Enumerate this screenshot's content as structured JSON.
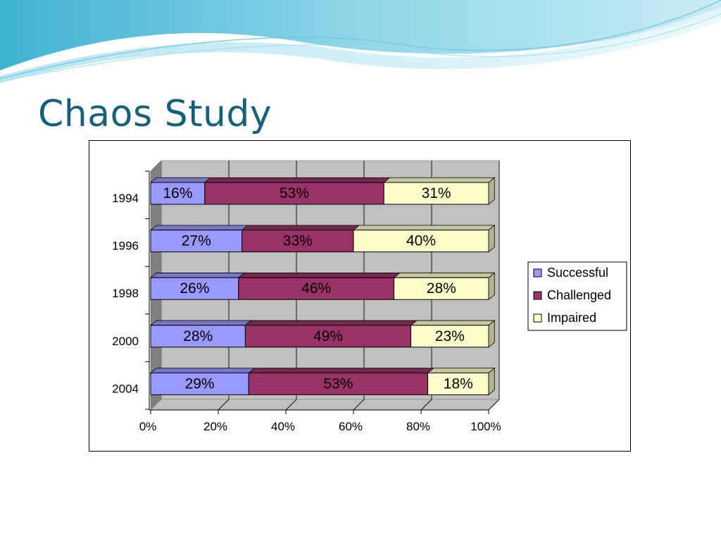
{
  "slide": {
    "title": "Chaos Study"
  },
  "chart_data": {
    "type": "bar",
    "orientation": "horizontal",
    "stacking": "percent",
    "style": "3d",
    "categories": [
      "1994",
      "1996",
      "1998",
      "2000",
      "2004"
    ],
    "series": [
      {
        "name": "Successful",
        "color": "#9999ff",
        "values": [
          16,
          27,
          26,
          28,
          29
        ],
        "labels": [
          "16%",
          "27%",
          "26%",
          "28%",
          "29%"
        ]
      },
      {
        "name": "Challenged",
        "color": "#993366",
        "values": [
          53,
          33,
          46,
          49,
          53
        ],
        "labels": [
          "53%",
          "33%",
          "46%",
          "49%",
          "53%"
        ]
      },
      {
        "name": "Impaired",
        "color": "#ffffcc",
        "values": [
          31,
          40,
          28,
          23,
          18
        ],
        "labels": [
          "31%",
          "40%",
          "28%",
          "23%",
          "18%"
        ]
      }
    ],
    "x_ticks": [
      "0%",
      "20%",
      "40%",
      "60%",
      "80%",
      "100%"
    ],
    "xlim": [
      0,
      100
    ],
    "grid": true,
    "legend_position": "right"
  }
}
